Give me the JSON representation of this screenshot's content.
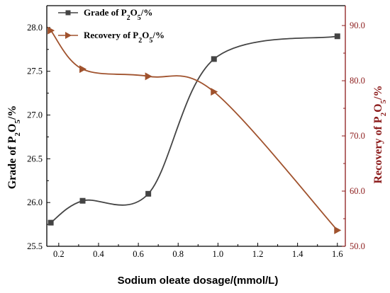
{
  "chart_data": {
    "type": "line",
    "xlabel": "Sodium oleate dosage/(mmol/L)",
    "ylabel_left": {
      "text": "Grade of P",
      "sub1": "2",
      "mid": "O",
      "sub2": "5",
      "tail": "/%"
    },
    "ylabel_right": {
      "text": "Recovery of P",
      "sub1": "2",
      "mid": "O",
      "sub2": "5",
      "tail": "/%"
    },
    "xlim": [
      0.14,
      1.64
    ],
    "ylim_left": [
      25.5,
      28.25
    ],
    "ylim_right": [
      50.0,
      93.6
    ],
    "x_ticks": [
      "0.2",
      "0.4",
      "0.6",
      "0.8",
      "1.0",
      "1.2",
      "1.4",
      "1.6"
    ],
    "y_ticks_left": [
      "25.5",
      "26.0",
      "26.5",
      "27.0",
      "27.5",
      "28.0"
    ],
    "y_ticks_right": [
      "50.0",
      "60.0",
      "70.0",
      "80.0",
      "90.0"
    ],
    "grid": false,
    "legend_position": "top-left",
    "series": [
      {
        "name": {
          "text": "Grade of P",
          "sub1": "2",
          "mid": "O",
          "sub2": "5",
          "tail": "/%"
        },
        "axis": "left",
        "marker": "square",
        "color": "#444444",
        "x": [
          0.16,
          0.32,
          0.65,
          0.98,
          1.6
        ],
        "y": [
          25.77,
          26.02,
          26.1,
          27.64,
          27.9
        ]
      },
      {
        "name": {
          "text": "Recovery of P",
          "sub1": "2",
          "mid": "O",
          "sub2": "5",
          "tail": "/%"
        },
        "axis": "right",
        "marker": "triangle-right",
        "color": "#a0522d",
        "x": [
          0.16,
          0.32,
          0.65,
          0.98,
          1.6
        ],
        "y": [
          89.1,
          82.1,
          80.8,
          78.0,
          52.9
        ]
      }
    ]
  }
}
